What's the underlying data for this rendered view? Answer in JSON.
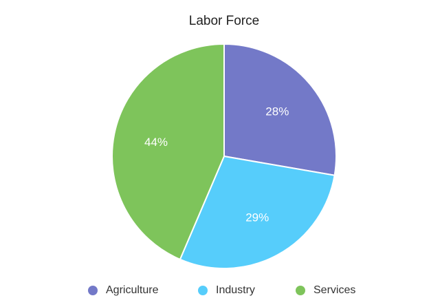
{
  "chart_data": {
    "type": "pie",
    "title": "Labor Force",
    "slices": [
      {
        "name": "Agriculture",
        "value": 28,
        "label": "28%",
        "color": "#7379c8"
      },
      {
        "name": "Industry",
        "value": 29,
        "label": "29%",
        "color": "#56cdfb"
      },
      {
        "name": "Services",
        "value": 44,
        "label": "44%",
        "color": "#7ec45b"
      }
    ],
    "legend_position": "bottom"
  }
}
